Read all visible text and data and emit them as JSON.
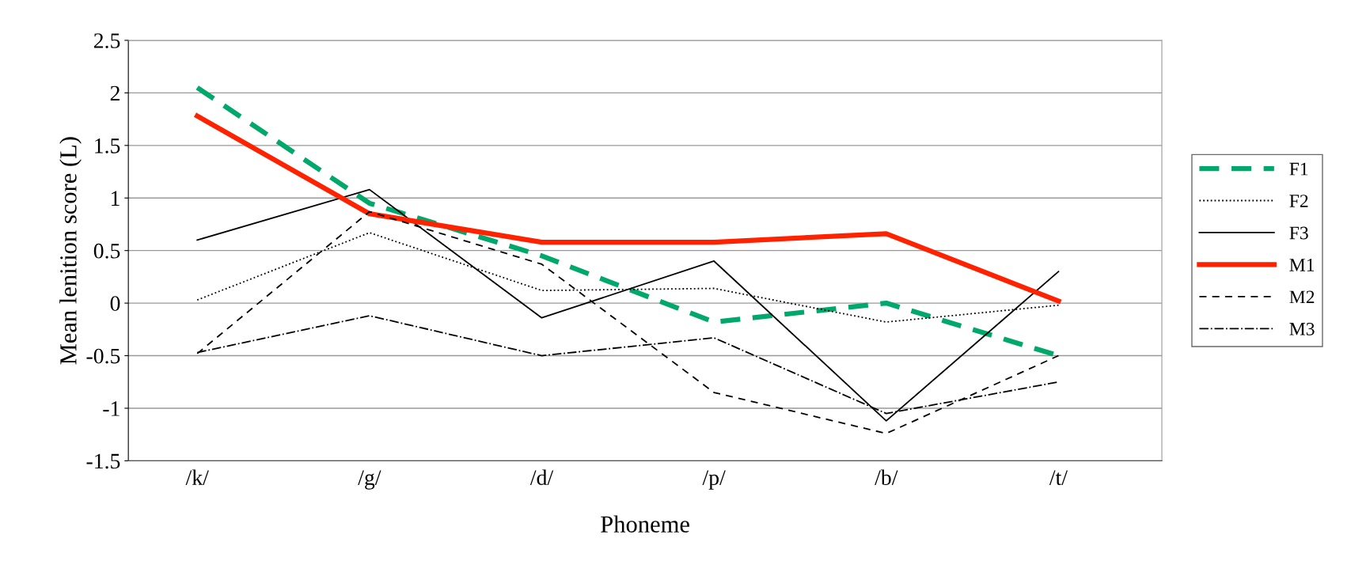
{
  "chart_data": {
    "type": "line",
    "xlabel": "Phoneme",
    "ylabel": "Mean lenition score (L)",
    "categories": [
      "/k/",
      "/g/",
      "/d/",
      "/p/",
      "/b/",
      "/t/"
    ],
    "series": [
      {
        "name": "F1",
        "color": "#00a86b",
        "line_style": "dashed",
        "values": [
          2.05,
          0.95,
          0.45,
          -0.18,
          0.0,
          -0.5
        ]
      },
      {
        "name": "F2",
        "color": "#000000",
        "line_style": "dotted",
        "values": [
          0.03,
          0.67,
          0.12,
          0.14,
          -0.18,
          -0.02
        ]
      },
      {
        "name": "F3",
        "color": "#000000",
        "line_style": "solid",
        "values": [
          0.6,
          1.08,
          -0.14,
          0.4,
          -1.12,
          0.3
        ]
      },
      {
        "name": "M1",
        "color": "#ff2200",
        "line_style": "solid",
        "values": [
          1.78,
          0.85,
          0.58,
          0.58,
          0.66,
          0.02
        ]
      },
      {
        "name": "M2",
        "color": "#000000",
        "line_style": "dashed",
        "values": [
          -0.48,
          0.87,
          0.37,
          -0.85,
          -1.24,
          -0.5
        ]
      },
      {
        "name": "M3",
        "color": "#000000",
        "line_style": "dashdot",
        "values": [
          -0.47,
          -0.12,
          -0.5,
          -0.33,
          -1.05,
          -0.75
        ]
      }
    ],
    "ylim": [
      -1.5,
      2.5
    ],
    "yticks": [
      -1.5,
      -1,
      -0.5,
      0,
      0.5,
      1,
      1.5,
      2,
      2.5
    ],
    "grid": "y",
    "legend": "right",
    "marker": "none"
  }
}
